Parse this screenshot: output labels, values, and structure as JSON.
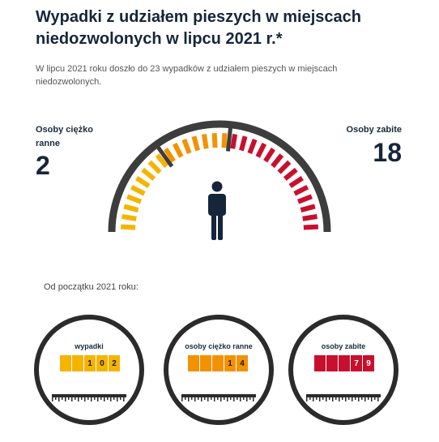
{
  "title": "Wypadki z udziałem pieszych w miejscach niedozwolonych w lipcu 2021 r.*",
  "intro": "W lipcu 2021 roku doszło do 23 wypadków z udziałem pieszych w miejscach niedozwolonych.",
  "gauge": {
    "left_label": "Osoby ciężko ranne",
    "left_value": "2",
    "right_label": "Osoby zabite",
    "right_value": "18",
    "figure_icon": "person-icon",
    "colors": {
      "yellow": "#f5b400",
      "orange": "#f39200",
      "red": "#c8102e",
      "arc": "#3d3d3d"
    }
  },
  "since_label": "Od początku 2021 roku:",
  "counters": [
    {
      "label": "wypadki",
      "digits": [
        "",
        "",
        "1",
        "0",
        "2"
      ],
      "color": "#f5b400"
    },
    {
      "label": "osoby ciężko ranne",
      "digits": [
        "",
        "",
        "",
        "1",
        "4"
      ],
      "color": "#f39200"
    },
    {
      "label": "osoby zabite",
      "digits": [
        "",
        "",
        "",
        "7",
        "9"
      ],
      "color": "#c8102e"
    }
  ]
}
